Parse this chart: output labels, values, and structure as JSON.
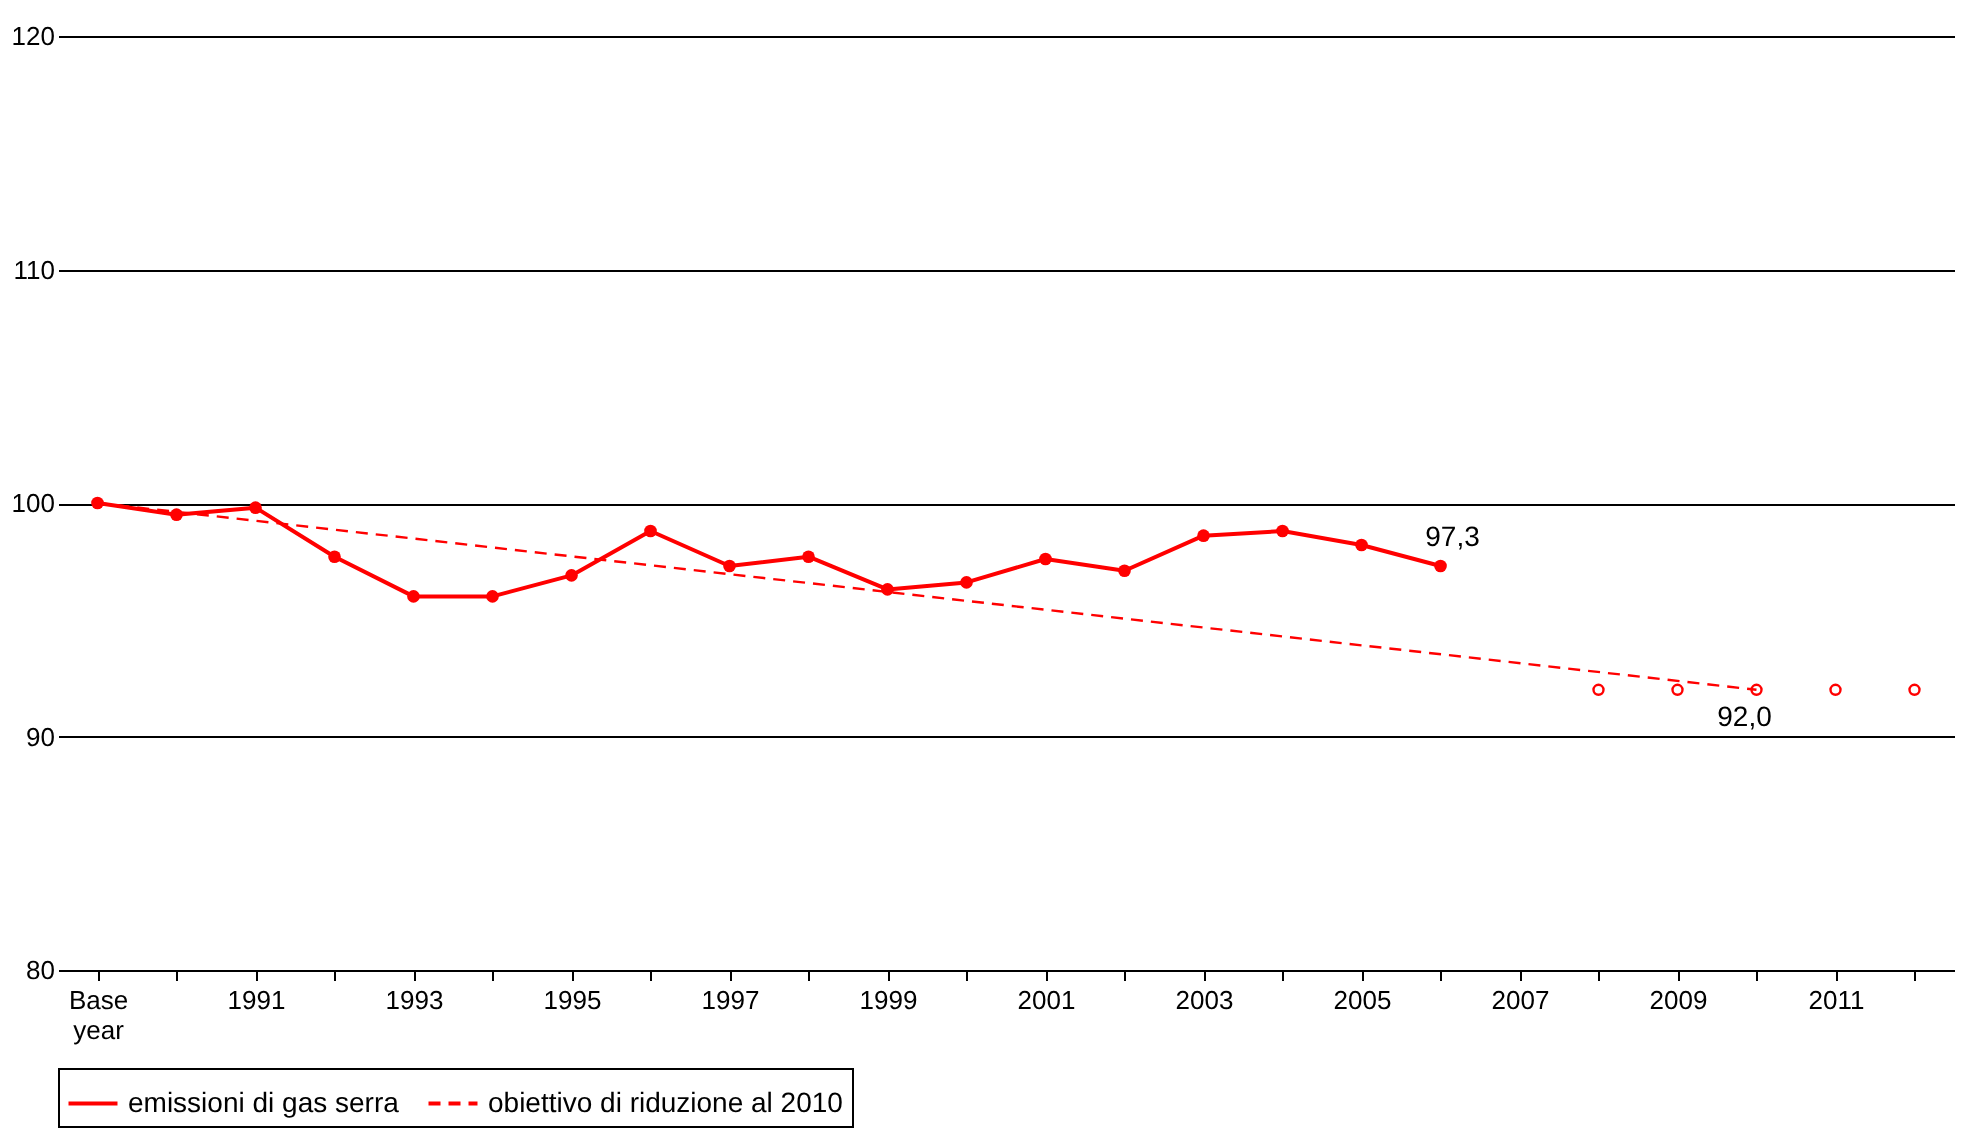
{
  "chart_data": {
    "type": "line",
    "categories": [
      "Base year",
      null,
      "1991",
      null,
      "1993",
      null,
      "1995",
      null,
      "1997",
      null,
      "1999",
      null,
      "2001",
      null,
      "2003",
      null,
      "2005",
      null,
      "2007",
      null,
      "2009",
      null,
      "2011",
      null
    ],
    "series": [
      {
        "name": "emissioni di gas serra",
        "color": "#ff0000",
        "marker": "circle",
        "line_style": "solid",
        "values": [
          100,
          99.5,
          99.8,
          97.7,
          96.0,
          96.0,
          96.9,
          98.8,
          97.3,
          97.7,
          96.3,
          96.6,
          97.6,
          97.1,
          98.6,
          98.8,
          98.2,
          97.3,
          null,
          null,
          null,
          null,
          null,
          null
        ],
        "value_labels": [
          null,
          null,
          null,
          null,
          null,
          null,
          null,
          null,
          null,
          null,
          null,
          null,
          null,
          null,
          null,
          null,
          null,
          "97,3",
          null,
          null,
          null,
          null,
          null,
          null
        ]
      },
      {
        "name": "obiettivo di riduzione al 2010",
        "color": "#ff0000",
        "marker": "none",
        "line_style": "dashed",
        "values": [
          100,
          null,
          null,
          null,
          null,
          null,
          null,
          null,
          null,
          null,
          null,
          null,
          null,
          null,
          null,
          null,
          null,
          null,
          null,
          null,
          null,
          92.0,
          null,
          null
        ],
        "value_labels": [
          null,
          null,
          null,
          null,
          null,
          null,
          null,
          null,
          null,
          null,
          null,
          null,
          null,
          null,
          null,
          null,
          null,
          null,
          null,
          null,
          null,
          "92,0",
          null,
          null
        ]
      },
      {
        "color": "#ff0000",
        "type": "scatter",
        "marker": "circle",
        "values": [
          null,
          null,
          null,
          null,
          null,
          null,
          null,
          null,
          null,
          null,
          null,
          null,
          null,
          null,
          null,
          null,
          null,
          null,
          null,
          92.0,
          92.0,
          92.0,
          92.0,
          92.0
        ]
      }
    ],
    "ylim": [
      80,
      120
    ],
    "yticks": [
      80,
      90,
      100,
      110,
      120
    ],
    "grid": "y",
    "legend": "bottom"
  }
}
